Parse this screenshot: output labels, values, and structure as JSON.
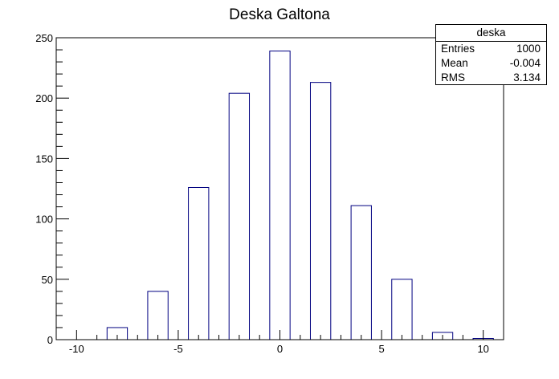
{
  "chart_data": {
    "type": "bar",
    "title": "Deska Galtona",
    "x": [
      -10,
      -8,
      -6,
      -4,
      -2,
      0,
      2,
      4,
      6,
      8,
      10
    ],
    "values": [
      0,
      10,
      40,
      126,
      204,
      239,
      213,
      111,
      50,
      6,
      1
    ],
    "xlim": [
      -11,
      11
    ],
    "ylim": [
      0,
      250
    ],
    "xticks": [
      "-10",
      "-5",
      "0",
      "5",
      "10"
    ],
    "yticks": [
      "0",
      "50",
      "100",
      "150",
      "200",
      "250"
    ],
    "xlabel": "",
    "ylabel": "",
    "bar_color": "#000080",
    "grid": false,
    "legend": "none"
  },
  "stats": {
    "name": "deska",
    "rows": [
      {
        "label": "Entries",
        "value": "1000"
      },
      {
        "label": "Mean",
        "value": "-0.004"
      },
      {
        "label": "RMS",
        "value": "3.134"
      }
    ]
  }
}
